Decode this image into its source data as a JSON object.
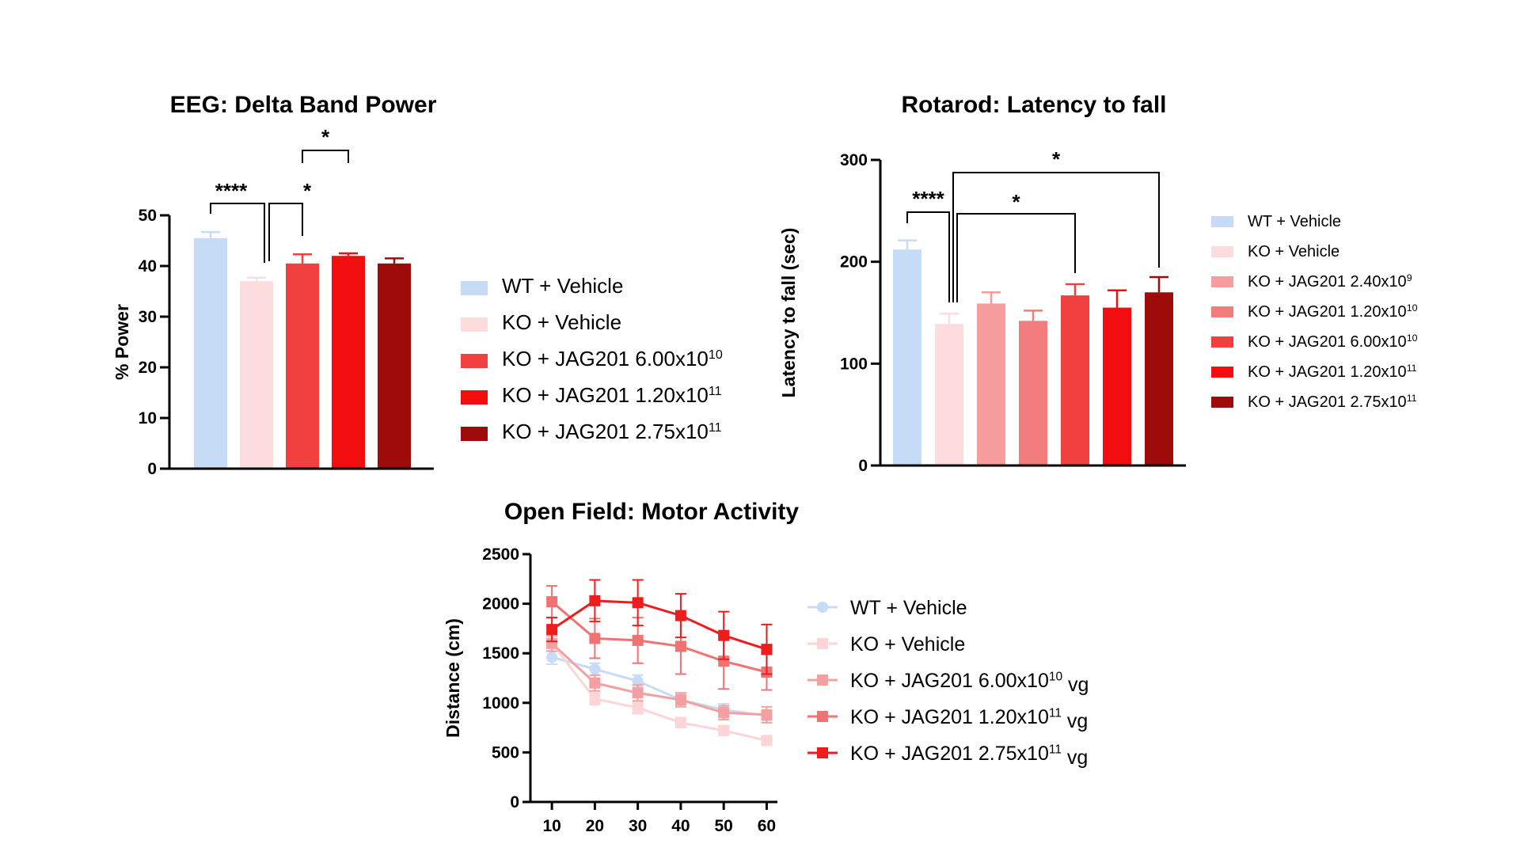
{
  "chart_data": [
    {
      "type": "bar",
      "title": "EEG: Delta Band Power",
      "ylabel": "% Power",
      "ylim": [
        0,
        50
      ],
      "yticks": [
        "0",
        "10",
        "20",
        "30",
        "40",
        "50"
      ],
      "legend_position": "right",
      "series": [
        {
          "name": "WT + Vehicle",
          "name_sup": "",
          "color": "#c6dbf5",
          "value": 45.5,
          "error": 1.2
        },
        {
          "name": "KO + Vehicle",
          "name_sup": "",
          "color": "#fcdcdc",
          "value": 37,
          "error": 0.7
        },
        {
          "name": "KO + JAG201 6.00x10",
          "name_sup": "10",
          "color": "#f0403f",
          "value": 40.5,
          "error": 1.8
        },
        {
          "name": "KO + JAG201 1.20x10",
          "name_sup": "11",
          "color": "#f20e0e",
          "value": 42,
          "error": 0.5
        },
        {
          "name": "KO + JAG201 2.75x10",
          "name_sup": "11",
          "color": "#9d0b0b",
          "value": 40.5,
          "error": 1.0
        }
      ],
      "significance": [
        {
          "label": "****",
          "from": 0,
          "to": 1
        },
        {
          "label": "*",
          "from": 1,
          "to": 3
        },
        {
          "label": "*",
          "from": 1,
          "to": 2
        }
      ]
    },
    {
      "type": "bar",
      "title": "Rotarod: Latency to fall",
      "ylabel": "Latency to fall  (sec)",
      "ylim": [
        0,
        300
      ],
      "yticks": [
        "0",
        "100",
        "200",
        "300"
      ],
      "legend_position": "right",
      "series": [
        {
          "name": "WT + Vehicle",
          "name_sup": "",
          "color": "#c6dbf5",
          "value": 212,
          "error": 9
        },
        {
          "name": "KO + Vehicle",
          "name_sup": "",
          "color": "#fcdcdc",
          "value": 139,
          "error": 10
        },
        {
          "name": "KO + JAG201 2.40x10",
          "name_sup": "9",
          "color": "#f79c9c",
          "value": 159,
          "error": 11
        },
        {
          "name": "KO + JAG201 1.20x10",
          "name_sup": "10",
          "color": "#f07c7c",
          "value": 142,
          "error": 10
        },
        {
          "name": "KO + JAG201 6.00x10",
          "name_sup": "10",
          "color": "#f0403f",
          "value": 167,
          "error": 11
        },
        {
          "name": "KO + JAG201 1.20x10",
          "name_sup": "11",
          "color": "#f20e0e",
          "value": 155,
          "error": 17
        },
        {
          "name": "KO + JAG201 2.75x10",
          "name_sup": "11",
          "color": "#9d0b0b",
          "value": 170,
          "error": 15
        }
      ],
      "significance": [
        {
          "label": "****",
          "from": 0,
          "to": 1
        },
        {
          "label": "*",
          "from": 1,
          "to": 4
        },
        {
          "label": "*",
          "from": 1,
          "to": 6
        }
      ]
    },
    {
      "type": "line",
      "title": "Open Field: Motor Activity",
      "ylabel": "Distance (cm)",
      "ylim": [
        0,
        2500
      ],
      "yticks": [
        "0",
        "500",
        "1000",
        "1500",
        "2000",
        "2500"
      ],
      "x": [
        10,
        20,
        30,
        40,
        50,
        60
      ],
      "xticks": [
        "10",
        "20",
        "30",
        "40",
        "50",
        "60"
      ],
      "legend_position": "right",
      "series": [
        {
          "name": "WT + Vehicle",
          "name_sup": "",
          "name_suffix": "",
          "color": "#c6dbf5",
          "marker": "circle",
          "values": [
            1460,
            1340,
            1220,
            1030,
            930,
            870
          ],
          "errors": [
            70,
            60,
            60,
            60,
            60,
            50
          ]
        },
        {
          "name": "KO + Vehicle",
          "name_sup": "",
          "name_suffix": "",
          "color": "#fcd6d6",
          "marker": "square",
          "values": [
            1600,
            1040,
            950,
            800,
            720,
            620
          ],
          "errors": [
            70,
            60,
            60,
            50,
            50,
            40
          ]
        },
        {
          "name": "KO + JAG201 6.00x10",
          "name_sup": "10",
          "name_suffix": " vg",
          "color": "#f4a0a0",
          "marker": "square",
          "values": [
            1600,
            1200,
            1100,
            1030,
            900,
            880
          ],
          "errors": [
            80,
            80,
            80,
            70,
            70,
            80
          ]
        },
        {
          "name": "KO + JAG201 1.20x10",
          "name_sup": "11",
          "name_suffix": " vg",
          "color": "#f07272",
          "marker": "square",
          "values": [
            2020,
            1650,
            1630,
            1570,
            1420,
            1310
          ],
          "errors": [
            160,
            200,
            230,
            280,
            280,
            180
          ]
        },
        {
          "name": "KO + JAG201 2.75x10",
          "name_sup": "11",
          "name_suffix": " vg",
          "color": "#ee1c1c",
          "marker": "square",
          "values": [
            1740,
            2030,
            2010,
            1880,
            1680,
            1540
          ],
          "errors": [
            120,
            210,
            230,
            220,
            240,
            250
          ]
        }
      ]
    }
  ]
}
